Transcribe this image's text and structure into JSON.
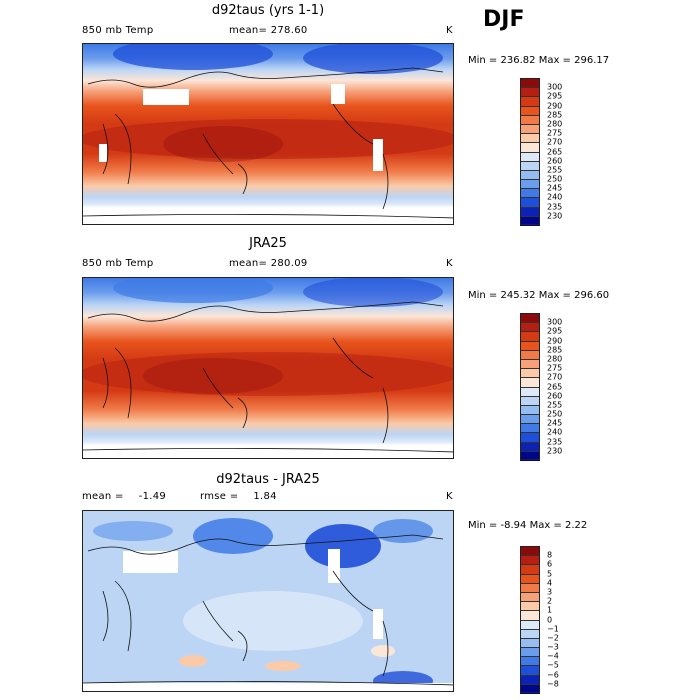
{
  "season": "DJF",
  "chart_data": [
    {
      "type": "heatmap",
      "title": "d92taus (yrs 1-1)",
      "variable": "850 mb Temp",
      "stat_label": "mean=",
      "stat_value": "278.60",
      "units": "K",
      "min_label": "Min =",
      "min_value": "236.82",
      "max_label": "Max =",
      "max_value": "296.17",
      "colorbar": {
        "labels": [
          "300",
          "295",
          "290",
          "285",
          "280",
          "275",
          "270",
          "265",
          "260",
          "255",
          "250",
          "245",
          "240",
          "235",
          "230"
        ],
        "colors": [
          "#8b0a0a",
          "#b51f12",
          "#d43a14",
          "#e8541c",
          "#f07a48",
          "#f6a17a",
          "#fbcaa8",
          "#fbe6d8",
          "#dce9f8",
          "#bcd5f5",
          "#96bdf1",
          "#6b9ded",
          "#3f7ae6",
          "#1f4fd8",
          "#0b22b5",
          "#00068c"
        ]
      }
    },
    {
      "type": "heatmap",
      "title": "JRA25",
      "variable": "850 mb Temp",
      "stat_label": "mean=",
      "stat_value": "280.09",
      "units": "K",
      "min_label": "Min =",
      "min_value": "245.32",
      "max_label": "Max =",
      "max_value": "296.60",
      "colorbar": {
        "labels": [
          "300",
          "295",
          "290",
          "285",
          "280",
          "275",
          "270",
          "265",
          "260",
          "255",
          "250",
          "245",
          "240",
          "235",
          "230"
        ],
        "colors": [
          "#8b0a0a",
          "#b51f12",
          "#d43a14",
          "#e8541c",
          "#f07a48",
          "#f6a17a",
          "#fbcaa8",
          "#fbe6d8",
          "#dce9f8",
          "#bcd5f5",
          "#96bdf1",
          "#6b9ded",
          "#3f7ae6",
          "#1f4fd8",
          "#0b22b5",
          "#00068c"
        ]
      }
    },
    {
      "type": "heatmap",
      "title": "d92taus - JRA25",
      "stat_label": "mean =",
      "stat_value": "-1.49",
      "stat2_label": "rmse =",
      "stat2_value": "1.84",
      "units": "K",
      "min_label": "Min =",
      "min_value": "-8.94",
      "max_label": "Max =",
      "max_value": "2.22",
      "colorbar": {
        "labels": [
          "8",
          "6",
          "5",
          "4",
          "3",
          "2",
          "1",
          "0",
          "−1",
          "−2",
          "−3",
          "−4",
          "−5",
          "−6",
          "−8"
        ],
        "colors": [
          "#8b0a0a",
          "#b51f12",
          "#d43a14",
          "#e8541c",
          "#f07a48",
          "#f6a17a",
          "#fbcaa8",
          "#fbe6d8",
          "#dce9f8",
          "#bcd5f5",
          "#96bdf1",
          "#6b9ded",
          "#3f7ae6",
          "#1f4fd8",
          "#0b22b5",
          "#00068c"
        ]
      }
    }
  ]
}
